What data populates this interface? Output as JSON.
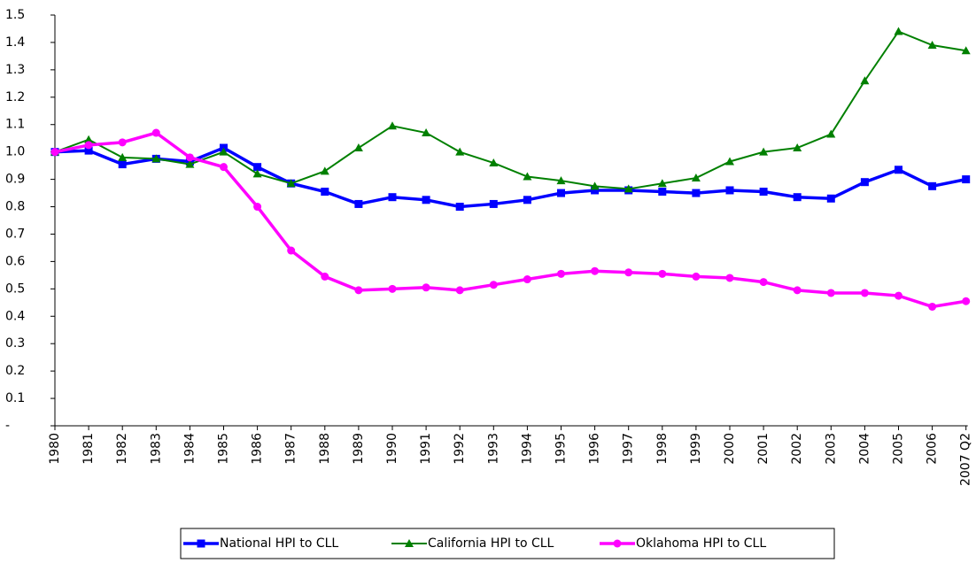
{
  "chart_data": {
    "type": "line",
    "categories": [
      "1980",
      "1981",
      "1982",
      "1983",
      "1984",
      "1985",
      "1986",
      "1987",
      "1988",
      "1989",
      "1990",
      "1991",
      "1992",
      "1993",
      "1994",
      "1995",
      "1996",
      "1997",
      "1998",
      "1999",
      "2000",
      "2001",
      "2002",
      "2003",
      "2004",
      "2005",
      "2006",
      "2007 Q2"
    ],
    "series": [
      {
        "name": "National HPI to CLL",
        "color": "#0000ff",
        "marker": "square",
        "values": [
          1.0,
          1.005,
          0.955,
          0.975,
          0.965,
          1.015,
          0.945,
          0.885,
          0.855,
          0.81,
          0.835,
          0.825,
          0.8,
          0.81,
          0.825,
          0.85,
          0.86,
          0.86,
          0.855,
          0.85,
          0.86,
          0.855,
          0.835,
          0.83,
          0.89,
          0.935,
          0.875,
          0.9
        ]
      },
      {
        "name": "California HPI to CLL",
        "color": "#008000",
        "marker": "triangle",
        "values": [
          1.0,
          1.045,
          0.98,
          0.975,
          0.955,
          1.0,
          0.92,
          0.885,
          0.93,
          1.015,
          1.095,
          1.07,
          1.0,
          0.96,
          0.91,
          0.895,
          0.875,
          0.865,
          0.885,
          0.905,
          0.965,
          1.0,
          1.015,
          1.065,
          1.26,
          1.44,
          1.39,
          1.37
        ]
      },
      {
        "name": "Oklahoma HPI to CLL",
        "color": "#ff00ff",
        "marker": "circle",
        "values": [
          1.0,
          1.025,
          1.035,
          1.07,
          0.98,
          0.945,
          0.8,
          0.64,
          0.545,
          0.495,
          0.5,
          0.505,
          0.495,
          0.515,
          0.535,
          0.555,
          0.565,
          0.56,
          0.555,
          0.545,
          0.54,
          0.525,
          0.495,
          0.485,
          0.485,
          0.475,
          0.435,
          0.455
        ]
      }
    ],
    "ylim": [
      0,
      1.5
    ],
    "yticks": [
      {
        "value": 0,
        "label": "-"
      },
      0.1,
      0.2,
      0.3,
      0.4,
      0.5,
      0.6,
      0.7,
      0.8,
      0.9,
      {
        "value": 1,
        "label": "1.0"
      },
      1.1,
      1.2,
      1.3,
      1.4,
      {
        "value": 1.5,
        "label": "1.5"
      }
    ],
    "legend": "bottom"
  }
}
